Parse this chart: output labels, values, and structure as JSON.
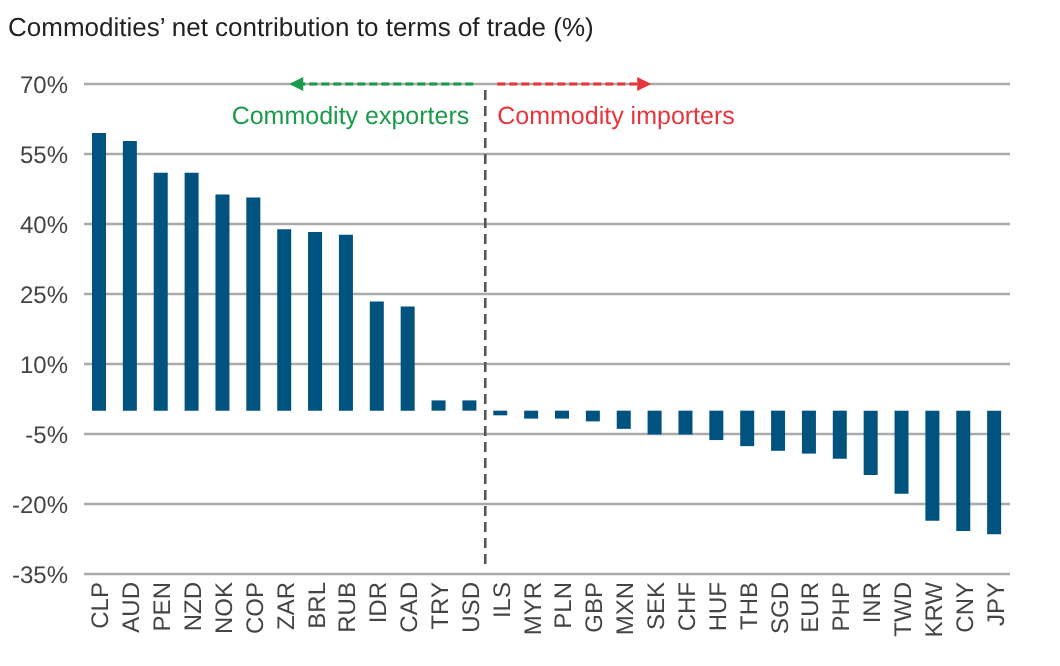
{
  "chart_data": {
    "type": "bar",
    "title": "Commodities’ net contribution to terms of trade (%)",
    "categories": [
      "CLP",
      "AUD",
      "PEN",
      "NZD",
      "NOK",
      "COP",
      "ZAR",
      "BRL",
      "RUB",
      "IDR",
      "CAD",
      "TRY",
      "USD",
      "ILS",
      "MYR",
      "PLN",
      "GBP",
      "MXN",
      "SEK",
      "CHF",
      "HUF",
      "THB",
      "SGD",
      "EUR",
      "PHP",
      "INR",
      "TWD",
      "KRW",
      "CNY",
      "JPY"
    ],
    "values": [
      59.5,
      57.8,
      51,
      51,
      46.3,
      45.7,
      38.9,
      38.3,
      37.7,
      23.4,
      22.3,
      2.2,
      2.2,
      -1,
      -1.7,
      -1.7,
      -2.3,
      -3.9,
      -5.1,
      -5.1,
      -6.3,
      -7.6,
      -8.6,
      -9.2,
      -10.3,
      -13.8,
      -17.8,
      -23.6,
      -25.8,
      -26.5
    ],
    "color": "#00527f",
    "ylim": [
      -35,
      70
    ],
    "yticks": [
      {
        "value": -35,
        "label": "-35%"
      },
      {
        "value": -20,
        "label": "-20%"
      },
      {
        "value": -5,
        "label": "-5%"
      },
      {
        "value": 10,
        "label": "10%"
      },
      {
        "value": 25,
        "label": "25%"
      },
      {
        "value": 40,
        "label": "40%"
      },
      {
        "value": 55,
        "label": "55%"
      },
      {
        "value": 70,
        "label": "70%"
      }
    ],
    "grid": "y",
    "annotations": [
      "Commodity exporters",
      "Commodity importers"
    ]
  }
}
